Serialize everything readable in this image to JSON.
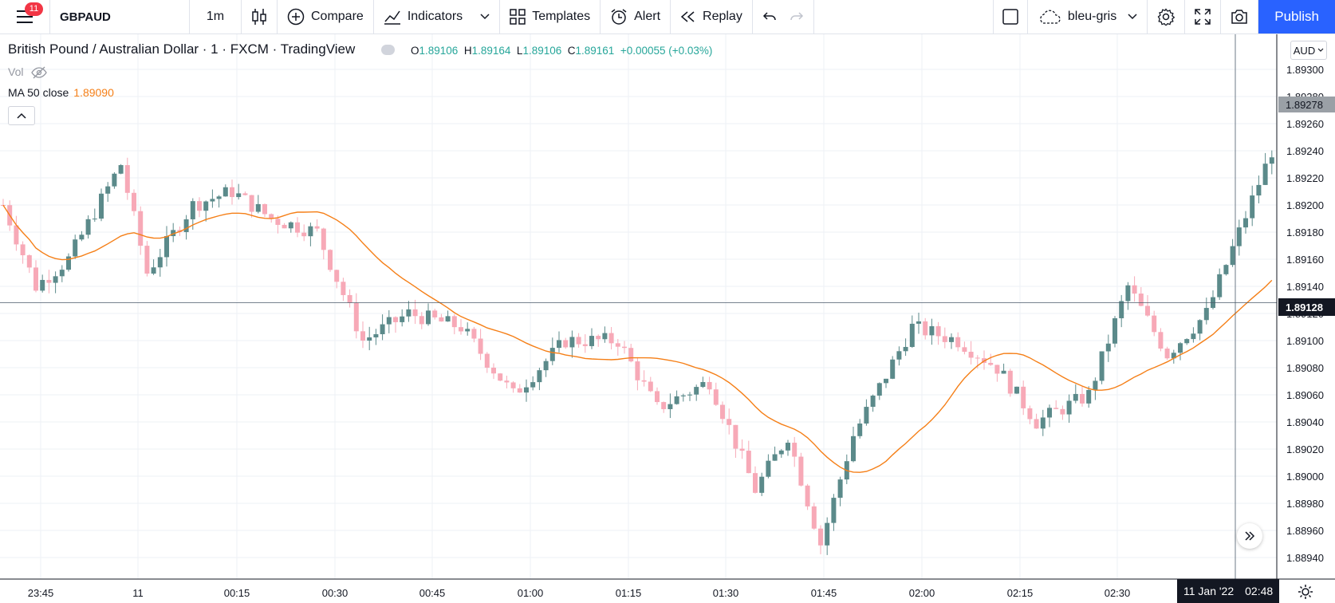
{
  "toolbar": {
    "menu_badge": "11",
    "symbol": "GBPAUD",
    "interval": "1m",
    "compare": "Compare",
    "indicators": "Indicators",
    "templates": "Templates",
    "alert": "Alert",
    "replay": "Replay",
    "layout_name": "bleu-gris",
    "publish": "Publish"
  },
  "legend": {
    "title": "British Pound / Australian Dollar · 1 · FXCM · TradingView",
    "open_label": "O",
    "open": "1.89106",
    "high_label": "H",
    "high": "1.89164",
    "low_label": "L",
    "low": "1.89106",
    "close_label": "C",
    "close": "1.89161",
    "change": "+0.00055 (+0.03%)",
    "vol": "Vol",
    "ma_label": "MA 50 close",
    "ma_value": "1.89090"
  },
  "price_axis": {
    "currency": "AUD",
    "ticks": [
      "1.89300",
      "1.89280",
      "1.89260",
      "1.89240",
      "1.89220",
      "1.89200",
      "1.89180",
      "1.89160",
      "1.89140",
      "1.89120",
      "1.89100",
      "1.89080",
      "1.89060",
      "1.89040",
      "1.89020",
      "1.89000",
      "1.88980",
      "1.88960",
      "1.88940"
    ],
    "last_price": "1.89278",
    "crosshair_price": "1.89128"
  },
  "time_axis": {
    "ticks": [
      "23:45",
      "11",
      "00:15",
      "00:30",
      "00:45",
      "01:00",
      "01:15",
      "01:30",
      "01:45",
      "02:00",
      "02:15",
      "02:30"
    ],
    "cursor_date": "11 Jan '22",
    "cursor_time": "02:48"
  },
  "colors": {
    "up": "#5b8a8a",
    "down": "#f7a9b7",
    "ma": "#f57f17",
    "accent": "#2962ff"
  },
  "chart_data": {
    "type": "candlestick",
    "symbol": "GBPAUD",
    "interval": "1m",
    "ylim": [
      1.8893,
      1.8932
    ],
    "indicator": {
      "name": "MA 50 close",
      "last": 1.8909
    },
    "crosshair": {
      "price": 1.89128,
      "time": "02:48"
    },
    "candles": [
      {
        "o": 1.89138,
        "h": 1.89138,
        "l": 1.89138,
        "c": 1.89138
      },
      {
        "o": 1.89138,
        "h": 1.89138,
        "l": 1.89138,
        "c": 1.89138
      },
      {
        "o": 1.89138,
        "h": 1.89138,
        "l": 1.89138,
        "c": 1.89138
      },
      {
        "o": 1.89138,
        "h": 1.89138,
        "l": 1.89138,
        "c": 1.89138
      }
    ]
  }
}
